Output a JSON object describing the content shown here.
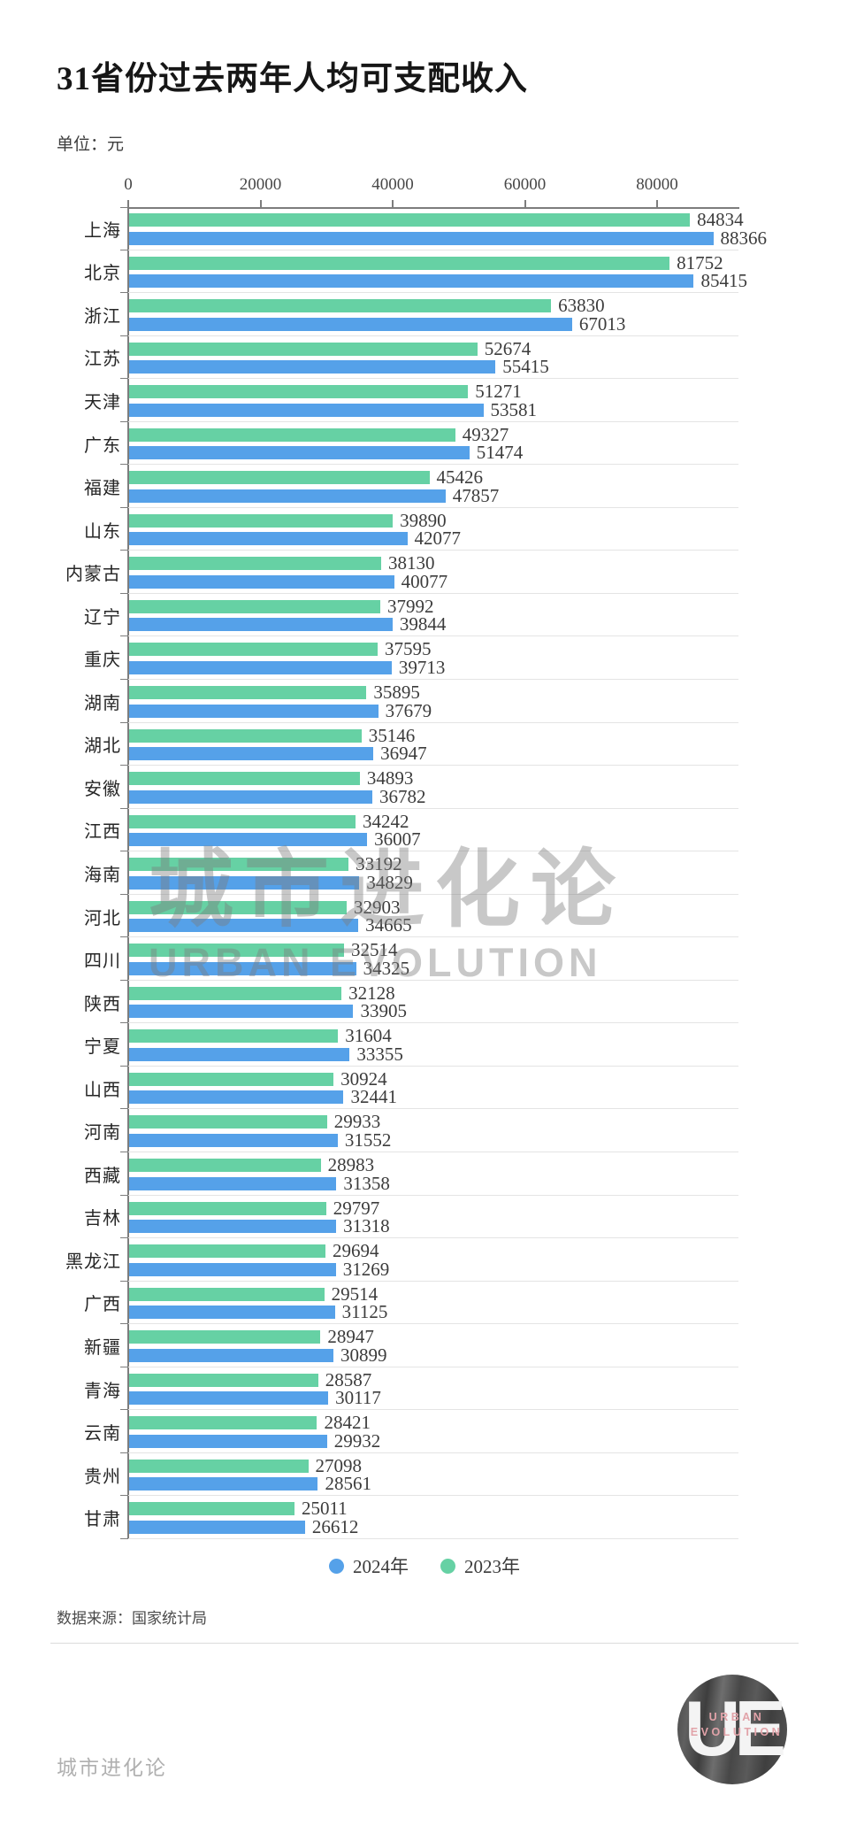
{
  "header": {
    "title": "31省份过去两年人均可支配收入",
    "unit": "单位：元"
  },
  "chart_data": {
    "type": "bar",
    "orientation": "horizontal",
    "title": "31省份过去两年人均可支配收入",
    "xlabel": "",
    "ylabel": "",
    "unit": "元",
    "xlim": [
      0,
      92300
    ],
    "ticks": [
      0,
      20000,
      40000,
      60000,
      80000
    ],
    "grid": false,
    "legend_position": "bottom",
    "categories": [
      "上海",
      "北京",
      "浙江",
      "江苏",
      "天津",
      "广东",
      "福建",
      "山东",
      "内蒙古",
      "辽宁",
      "重庆",
      "湖南",
      "湖北",
      "安徽",
      "江西",
      "海南",
      "河北",
      "四川",
      "陕西",
      "宁夏",
      "山西",
      "河南",
      "西藏",
      "吉林",
      "黑龙江",
      "广西",
      "新疆",
      "青海",
      "云南",
      "贵州",
      "甘肃"
    ],
    "series": [
      {
        "name": "2024年",
        "color": "#55a1e9",
        "values": [
          88366,
          85415,
          67013,
          55415,
          53581,
          51474,
          47857,
          42077,
          40077,
          39844,
          39713,
          37679,
          36947,
          36782,
          36007,
          34829,
          34665,
          34325,
          33905,
          33355,
          32441,
          31552,
          31358,
          31318,
          31269,
          31125,
          30899,
          30117,
          29932,
          28561,
          26612
        ]
      },
      {
        "name": "2023年",
        "color": "#66d1a4",
        "values": [
          84834,
          81752,
          63830,
          52674,
          51271,
          49327,
          45426,
          39890,
          38130,
          37992,
          37595,
          35895,
          35146,
          34893,
          34242,
          33192,
          32903,
          32514,
          32128,
          31604,
          30924,
          29933,
          28983,
          29797,
          29694,
          29514,
          28947,
          28587,
          28421,
          27098,
          25011
        ]
      }
    ],
    "bar_order_top_to_bottom": [
      "2023年",
      "2024年"
    ]
  },
  "legend": {
    "items": [
      {
        "label": "2024年",
        "color": "#55a1e9"
      },
      {
        "label": "2023年",
        "color": "#66d1a4"
      }
    ]
  },
  "watermark": {
    "line1": "城市进化论",
    "line2": "URBAN EVOLUTION"
  },
  "footer": {
    "source": "数据来源：国家统计局",
    "brand": "城市进化论"
  },
  "logo": {
    "monogram": "UE",
    "line1": "URBAN",
    "line2": "EVOLUTION"
  }
}
